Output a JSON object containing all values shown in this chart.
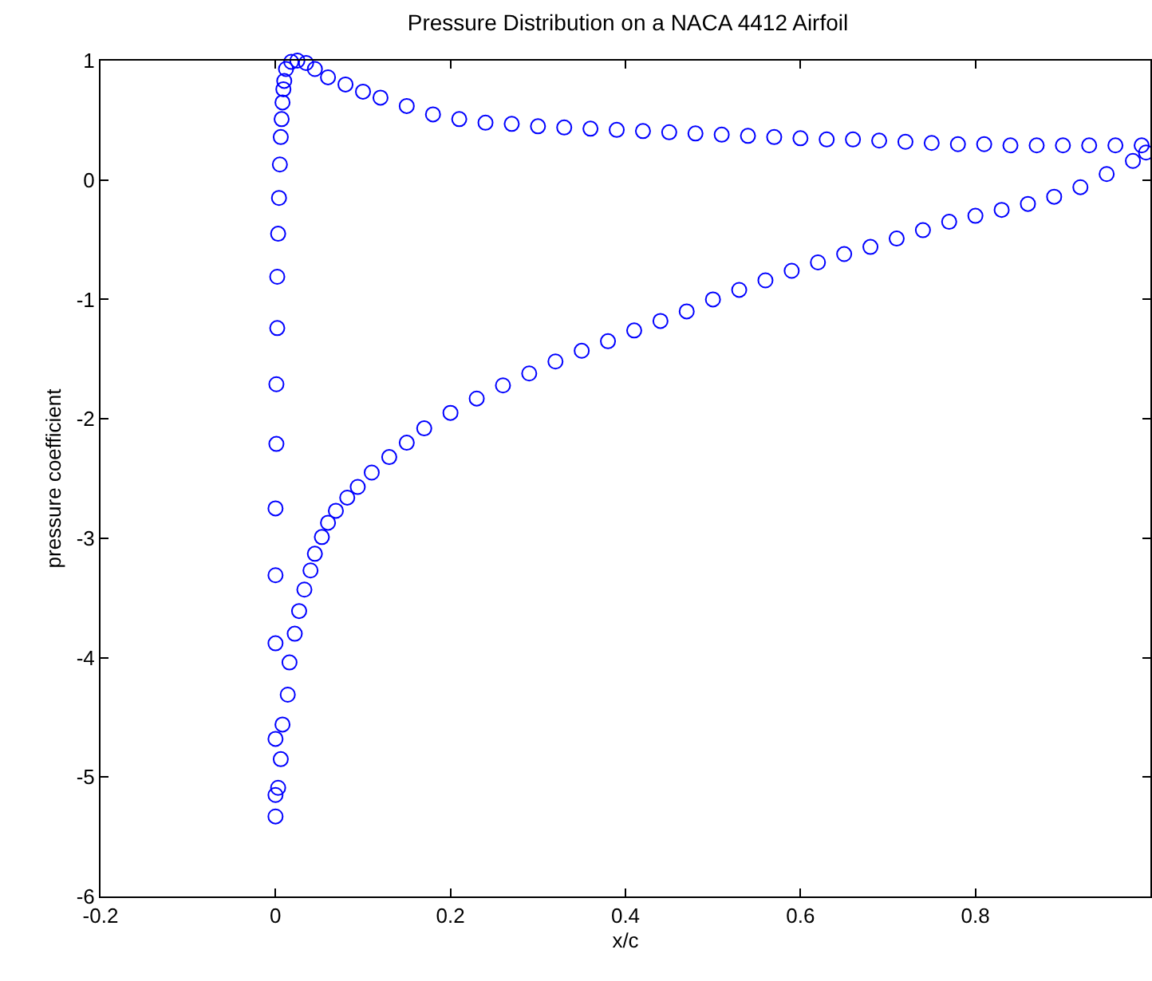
{
  "chart_data": {
    "type": "scatter",
    "title": "Pressure Distribution on a NACA 4412 Airfoil",
    "xlabel": "x/c",
    "ylabel": "pressure coefficient",
    "xlim": [
      -0.2,
      1
    ],
    "xticks": [
      -0.2,
      0,
      0.2,
      0.4,
      0.6,
      0.8
    ],
    "ylim": [
      -6,
      1
    ],
    "yticks": [
      -6,
      -5,
      -4,
      -3,
      -2,
      -1,
      0,
      1
    ],
    "marker": "circle",
    "series": [
      {
        "color": "#0000ff",
        "x": [
          0.99,
          0.96,
          0.93,
          0.9,
          0.87,
          0.84,
          0.81,
          0.78,
          0.75,
          0.72,
          0.69,
          0.66,
          0.63,
          0.6,
          0.57,
          0.54,
          0.51,
          0.48,
          0.45,
          0.42,
          0.39,
          0.36,
          0.33,
          0.3,
          0.27,
          0.24,
          0.21,
          0.18,
          0.15,
          0.12,
          0.1,
          0.08,
          0.06,
          0.045,
          0.035,
          0.025,
          0.018,
          0.012,
          0.01,
          0.009,
          0.008,
          0.007,
          0.006,
          0.005,
          0.004,
          0.003,
          0.002,
          0.002,
          0.001,
          0.001,
          0,
          0,
          0,
          0,
          0,
          0,
          0.003,
          0.006,
          0.008,
          0.014,
          0.016,
          0.022,
          0.027,
          0.033,
          0.04,
          0.045,
          0.053,
          0.06,
          0.069,
          0.082,
          0.094,
          0.11,
          0.13,
          0.15,
          0.17,
          0.2,
          0.23,
          0.26,
          0.29,
          0.32,
          0.35,
          0.38,
          0.41,
          0.44,
          0.47,
          0.5,
          0.53,
          0.56,
          0.59,
          0.62,
          0.65,
          0.68,
          0.71,
          0.74,
          0.77,
          0.8,
          0.83,
          0.86,
          0.89,
          0.92,
          0.95,
          0.98,
          0.995
        ],
        "values": [
          0.29,
          0.29,
          0.29,
          0.29,
          0.29,
          0.29,
          0.3,
          0.3,
          0.31,
          0.32,
          0.33,
          0.34,
          0.34,
          0.35,
          0.36,
          0.37,
          0.38,
          0.39,
          0.4,
          0.41,
          0.42,
          0.43,
          0.44,
          0.45,
          0.47,
          0.48,
          0.51,
          0.55,
          0.62,
          0.69,
          0.74,
          0.8,
          0.86,
          0.93,
          0.98,
          1.0,
          0.99,
          0.93,
          0.83,
          0.76,
          0.65,
          0.51,
          0.36,
          0.13,
          -0.15,
          -0.45,
          -0.81,
          -1.24,
          -1.71,
          -2.21,
          -2.75,
          -3.31,
          -3.88,
          -4.68,
          -5.15,
          -5.33,
          -5.09,
          -4.85,
          -4.56,
          -4.31,
          -4.04,
          -3.8,
          -3.61,
          -3.43,
          -3.27,
          -3.13,
          -2.99,
          -2.87,
          -2.77,
          -2.66,
          -2.57,
          -2.45,
          -2.32,
          -2.2,
          -2.08,
          -1.95,
          -1.83,
          -1.72,
          -1.62,
          -1.52,
          -1.43,
          -1.35,
          -1.26,
          -1.18,
          -1.1,
          -1.0,
          -0.92,
          -0.84,
          -0.76,
          -0.69,
          -0.62,
          -0.56,
          -0.49,
          -0.42,
          -0.35,
          -0.3,
          -0.25,
          -0.2,
          -0.14,
          -0.06,
          0.05,
          0.16,
          0.23
        ]
      }
    ]
  }
}
